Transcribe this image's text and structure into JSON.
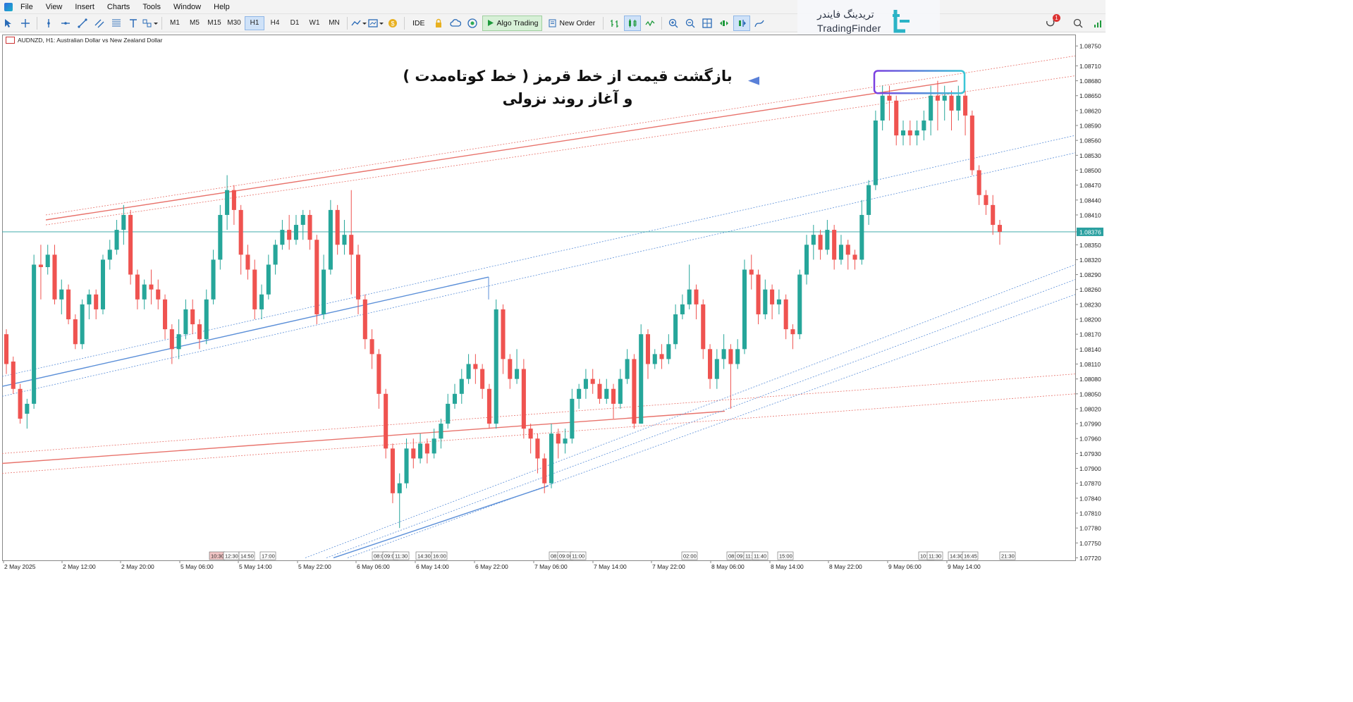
{
  "menu": [
    "File",
    "View",
    "Insert",
    "Charts",
    "Tools",
    "Window",
    "Help"
  ],
  "toolbar": {
    "timeframes": [
      "M1",
      "M5",
      "M15",
      "M30",
      "H1",
      "H4",
      "D1",
      "W1",
      "MN"
    ],
    "active_timeframe": "H1",
    "ide_label": "IDE",
    "algo_label": "Algo Trading",
    "new_order_label": "New Order",
    "notification_count": "1"
  },
  "logo": {
    "fa": "تریدینگ فایندر",
    "en": "TradingFinder"
  },
  "chart": {
    "symbol_label": "AUDNZD, H1:  Australian Dollar vs New Zealand Dollar",
    "current_price": "1.08376",
    "annotation_line1": "بازگشت قیمت از خط قرمز ( خط کوتاه‌مدت )",
    "annotation_line2": "و آغاز روند نزولی",
    "colors": {
      "bull": "#26a69a",
      "bear": "#ef5350",
      "red_line": "#e8736c",
      "blue_line": "#5b8fd8",
      "price_line": "#2aa0a0",
      "box": "#7b4fd8"
    }
  },
  "chart_data": {
    "type": "candlestick",
    "title": "",
    "ylim": [
      1.07715,
      1.08773
    ],
    "y_ticks": [
      "1.08750",
      "1.08710",
      "1.08680",
      "1.08650",
      "1.08620",
      "1.08590",
      "1.08560",
      "1.08530",
      "1.08500",
      "1.08470",
      "1.08440",
      "1.08410",
      "1.08376",
      "1.08350",
      "1.08320",
      "1.08290",
      "1.08260",
      "1.08230",
      "1.08200",
      "1.08170",
      "1.08140",
      "1.08110",
      "1.08080",
      "1.08050",
      "1.08020",
      "1.07990",
      "1.07960",
      "1.07930",
      "1.07900",
      "1.07870",
      "1.07840",
      "1.07810",
      "1.07780",
      "1.07750",
      "1.07720"
    ],
    "x_labels": [
      "2 May 2025",
      "2 May 12:00",
      "2 May 20:00",
      "5 May 06:00",
      "5 May 14:00",
      "5 May 22:00",
      "6 May 06:00",
      "6 May 14:00",
      "6 May 22:00",
      "7 May 06:00",
      "7 May 14:00",
      "7 May 22:00",
      "8 May 06:00",
      "8 May 14:00",
      "8 May 22:00",
      "9 May 06:00",
      "9 May 14:00"
    ],
    "period_labels": [
      "10:30",
      "12:30",
      "14:50",
      "17:00",
      "08:00",
      "09:00",
      "11:30",
      "14:30",
      "16:00",
      "08:00",
      "09:00",
      "11:00",
      "02:00",
      "08:00",
      "09:00",
      "11:00",
      "11:40",
      "15:00",
      "10:00",
      "11:30",
      "14:30",
      "16:45",
      "21:30"
    ],
    "candles": [
      [
        1.0817,
        1.0811,
        1.0818,
        1.0809
      ],
      [
        1.08115,
        1.0806,
        1.08125,
        1.0805
      ],
      [
        1.0806,
        1.08,
        1.0807,
        1.0799
      ],
      [
        1.0801,
        1.0803,
        1.0804,
        1.0798
      ],
      [
        1.0803,
        1.0831,
        1.0833,
        1.0802
      ],
      [
        1.0831,
        1.08305,
        1.0835,
        1.0824
      ],
      [
        1.08305,
        1.0833,
        1.0835,
        1.0829
      ],
      [
        1.0833,
        1.0824,
        1.0835,
        1.0823
      ],
      [
        1.0824,
        1.0826,
        1.0828,
        1.0821
      ],
      [
        1.0826,
        1.082,
        1.0827,
        1.0819
      ],
      [
        1.082,
        1.0815,
        1.0821,
        1.0814
      ],
      [
        1.0815,
        1.0823,
        1.0824,
        1.0814
      ],
      [
        1.0823,
        1.0825,
        1.0826,
        1.082
      ],
      [
        1.0825,
        1.0822,
        1.0826,
        1.082
      ],
      [
        1.0822,
        1.0832,
        1.0833,
        1.0821
      ],
      [
        1.0832,
        1.0834,
        1.0836,
        1.083
      ],
      [
        1.0834,
        1.0838,
        1.084,
        1.0833
      ],
      [
        1.0838,
        1.0841,
        1.0843,
        1.0835
      ],
      [
        1.0841,
        1.0829,
        1.0842,
        1.0827
      ],
      [
        1.0829,
        1.0824,
        1.083,
        1.0822
      ],
      [
        1.0824,
        1.0827,
        1.0828,
        1.0822
      ],
      [
        1.0827,
        1.0826,
        1.083,
        1.0823
      ],
      [
        1.0826,
        1.0824,
        1.0828,
        1.0822
      ],
      [
        1.0824,
        1.0818,
        1.0825,
        1.0816
      ],
      [
        1.0818,
        1.0814,
        1.0819,
        1.0811
      ],
      [
        1.0814,
        1.0817,
        1.082,
        1.0812
      ],
      [
        1.0817,
        1.0822,
        1.0824,
        1.0816
      ],
      [
        1.0822,
        1.0819,
        1.0824,
        1.0817
      ],
      [
        1.0819,
        1.0816,
        1.082,
        1.0814
      ],
      [
        1.0816,
        1.0824,
        1.0826,
        1.0815
      ],
      [
        1.0824,
        1.0832,
        1.0834,
        1.0823
      ],
      [
        1.0832,
        1.0841,
        1.0843,
        1.083
      ],
      [
        1.0841,
        1.0846,
        1.0849,
        1.0838
      ],
      [
        1.0846,
        1.0842,
        1.0847,
        1.0839
      ],
      [
        1.0842,
        1.0833,
        1.0843,
        1.0829
      ],
      [
        1.0833,
        1.083,
        1.0835,
        1.0828
      ],
      [
        1.083,
        1.0822,
        1.0832,
        1.082
      ],
      [
        1.0822,
        1.0825,
        1.0827,
        1.082
      ],
      [
        1.0825,
        1.0831,
        1.0833,
        1.0824
      ],
      [
        1.0831,
        1.0835,
        1.0836,
        1.0829
      ],
      [
        1.0835,
        1.0838,
        1.084,
        1.0834
      ],
      [
        1.0838,
        1.0836,
        1.0841,
        1.0834
      ],
      [
        1.0836,
        1.0839,
        1.0841,
        1.0835
      ],
      [
        1.0839,
        1.0841,
        1.0842,
        1.0836
      ],
      [
        1.0841,
        1.0836,
        1.0842,
        1.0834
      ],
      [
        1.0836,
        1.0821,
        1.0837,
        1.0819
      ],
      [
        1.0821,
        1.083,
        1.0833,
        1.082
      ],
      [
        1.083,
        1.0842,
        1.0844,
        1.0829
      ],
      [
        1.0842,
        1.0835,
        1.0843,
        1.0833
      ],
      [
        1.0835,
        1.0837,
        1.084,
        1.0833
      ],
      [
        1.0837,
        1.0833,
        1.0846,
        1.0825
      ],
      [
        1.0833,
        1.0824,
        1.0835,
        1.0821
      ],
      [
        1.0824,
        1.0816,
        1.0825,
        1.0814
      ],
      [
        1.0816,
        1.0813,
        1.0818,
        1.081
      ],
      [
        1.0813,
        1.0805,
        1.0814,
        1.0802
      ],
      [
        1.0805,
        1.0794,
        1.0806,
        1.0792
      ],
      [
        1.0794,
        1.0785,
        1.0795,
        1.0783
      ],
      [
        1.0785,
        1.0787,
        1.0789,
        1.0778
      ],
      [
        1.0787,
        1.0794,
        1.0796,
        1.0786
      ],
      [
        1.0794,
        1.0792,
        1.0796,
        1.079
      ],
      [
        1.0792,
        1.0795,
        1.0797,
        1.0791
      ],
      [
        1.0795,
        1.0793,
        1.0796,
        1.0791
      ],
      [
        1.0793,
        1.0796,
        1.0798,
        1.0792
      ],
      [
        1.0796,
        1.0799,
        1.08,
        1.0794
      ],
      [
        1.0799,
        1.0803,
        1.0805,
        1.0798
      ],
      [
        1.0803,
        1.0805,
        1.0807,
        1.0802
      ],
      [
        1.0805,
        1.0808,
        1.081,
        1.0803
      ],
      [
        1.0808,
        1.0811,
        1.0813,
        1.0807
      ],
      [
        1.0811,
        1.081,
        1.0813,
        1.0807
      ],
      [
        1.081,
        1.0806,
        1.0811,
        1.0804
      ],
      [
        1.0806,
        1.0799,
        1.0807,
        1.0798
      ],
      [
        1.0799,
        1.0822,
        1.0824,
        1.0798
      ],
      [
        1.0822,
        1.0812,
        1.0823,
        1.0809
      ],
      [
        1.0812,
        1.0808,
        1.0813,
        1.0806
      ],
      [
        1.0808,
        1.081,
        1.0814,
        1.0807
      ],
      [
        1.081,
        1.0798,
        1.0812,
        1.0796
      ],
      [
        1.0798,
        1.0796,
        1.0799,
        1.0793
      ],
      [
        1.0796,
        1.0792,
        1.0797,
        1.0789
      ],
      [
        1.0792,
        1.0787,
        1.0793,
        1.0785
      ],
      [
        1.0787,
        1.0797,
        1.0799,
        1.0786
      ],
      [
        1.0797,
        1.0795,
        1.0798,
        1.0792
      ],
      [
        1.0795,
        1.0796,
        1.0798,
        1.0793
      ],
      [
        1.0796,
        1.0804,
        1.0806,
        1.0795
      ],
      [
        1.0804,
        1.0806,
        1.0807,
        1.0802
      ],
      [
        1.0806,
        1.0808,
        1.081,
        1.0804
      ],
      [
        1.0808,
        1.0807,
        1.081,
        1.0805
      ],
      [
        1.0807,
        1.0804,
        1.0808,
        1.0803
      ],
      [
        1.0804,
        1.0806,
        1.0808,
        1.0803
      ],
      [
        1.0806,
        1.0803,
        1.0807,
        1.08
      ],
      [
        1.0803,
        1.0808,
        1.081,
        1.0802
      ],
      [
        1.0808,
        1.0812,
        1.0814,
        1.0807
      ],
      [
        1.0812,
        1.0799,
        1.0813,
        1.0798
      ],
      [
        1.0799,
        1.0817,
        1.0819,
        1.0799
      ],
      [
        1.0817,
        1.0811,
        1.0818,
        1.0808
      ],
      [
        1.0811,
        1.0813,
        1.0814,
        1.081
      ],
      [
        1.0813,
        1.0812,
        1.0815,
        1.081
      ],
      [
        1.0812,
        1.0815,
        1.0817,
        1.0811
      ],
      [
        1.0815,
        1.0821,
        1.0823,
        1.0814
      ],
      [
        1.0821,
        1.0823,
        1.0825,
        1.082
      ],
      [
        1.0823,
        1.0826,
        1.0831,
        1.0822
      ],
      [
        1.0826,
        1.0823,
        1.0827,
        1.082
      ],
      [
        1.0823,
        1.0814,
        1.0824,
        1.0812
      ],
      [
        1.0814,
        1.0808,
        1.0815,
        1.0806
      ],
      [
        1.0808,
        1.0812,
        1.0814,
        1.0806
      ],
      [
        1.0812,
        1.0814,
        1.0817,
        1.081
      ],
      [
        1.0814,
        1.0811,
        1.0815,
        1.0802
      ],
      [
        1.0811,
        1.0814,
        1.0816,
        1.081
      ],
      [
        1.0814,
        1.083,
        1.0832,
        1.0813
      ],
      [
        1.083,
        1.0829,
        1.0833,
        1.0826
      ],
      [
        1.0829,
        1.0821,
        1.083,
        1.0819
      ],
      [
        1.0821,
        1.0826,
        1.0828,
        1.082
      ],
      [
        1.0826,
        1.0823,
        1.0827,
        1.082
      ],
      [
        1.0823,
        1.0824,
        1.0826,
        1.0821
      ],
      [
        1.0824,
        1.0818,
        1.0825,
        1.0816
      ],
      [
        1.0818,
        1.0817,
        1.0819,
        1.0814
      ],
      [
        1.0817,
        1.0829,
        1.083,
        1.0816
      ],
      [
        1.0829,
        1.0835,
        1.0837,
        1.0827
      ],
      [
        1.0835,
        1.0837,
        1.0839,
        1.0832
      ],
      [
        1.0837,
        1.0834,
        1.0838,
        1.0832
      ],
      [
        1.0834,
        1.0838,
        1.084,
        1.0833
      ],
      [
        1.0838,
        1.0832,
        1.0839,
        1.083
      ],
      [
        1.0832,
        1.0835,
        1.0837,
        1.0831
      ],
      [
        1.0835,
        1.0833,
        1.0836,
        1.083
      ],
      [
        1.0833,
        1.0832,
        1.0834,
        1.083
      ],
      [
        1.0832,
        1.0841,
        1.0844,
        1.0831
      ],
      [
        1.0841,
        1.0847,
        1.0848,
        1.0839
      ],
      [
        1.0847,
        1.086,
        1.0862,
        1.0846
      ],
      [
        1.086,
        1.0865,
        1.0867,
        1.0858
      ],
      [
        1.0865,
        1.0864,
        1.0867,
        1.086
      ],
      [
        1.0864,
        1.0857,
        1.0865,
        1.0855
      ],
      [
        1.0857,
        1.0858,
        1.086,
        1.0855
      ],
      [
        1.0858,
        1.0857,
        1.086,
        1.0855
      ],
      [
        1.0857,
        1.0858,
        1.086,
        1.0855
      ],
      [
        1.0858,
        1.086,
        1.0862,
        1.0856
      ],
      [
        1.086,
        1.0865,
        1.0867,
        1.0857
      ],
      [
        1.0865,
        1.0864,
        1.0868,
        1.0858
      ],
      [
        1.0864,
        1.0865,
        1.0867,
        1.086
      ],
      [
        1.0865,
        1.0862,
        1.0866,
        1.0858
      ],
      [
        1.0862,
        1.0865,
        1.0867,
        1.086
      ],
      [
        1.0865,
        1.0861,
        1.0866,
        1.0857
      ],
      [
        1.0861,
        1.085,
        1.0862,
        1.0849
      ],
      [
        1.085,
        1.0845,
        1.0851,
        1.0843
      ],
      [
        1.0845,
        1.0843,
        1.0846,
        1.0841
      ],
      [
        1.0843,
        1.0839,
        1.0845,
        1.0837
      ],
      [
        1.0839,
        1.08376,
        1.084,
        1.0835
      ]
    ]
  }
}
